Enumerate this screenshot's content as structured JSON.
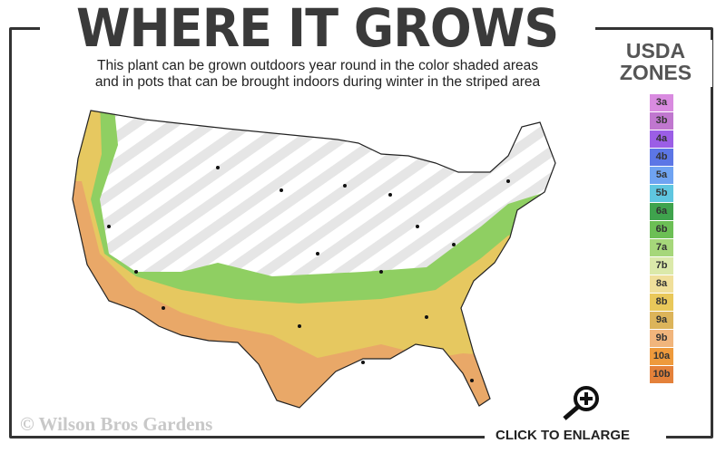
{
  "header": {
    "title": "WHERE IT GROWS",
    "subtitle_line1": "This plant can be grown outdoors year round in the color shaded areas",
    "subtitle_line2": "and in pots that can be brought indoors during winter in the striped area"
  },
  "legend": {
    "title_line1": "USDA",
    "title_line2": "ZONES",
    "zones": [
      {
        "label": "3a",
        "color": "#d98be0"
      },
      {
        "label": "3b",
        "color": "#c077cf"
      },
      {
        "label": "4a",
        "color": "#9b5ee6"
      },
      {
        "label": "4b",
        "color": "#5c76e6"
      },
      {
        "label": "5a",
        "color": "#6fa3f2"
      },
      {
        "label": "5b",
        "color": "#5fc6e0"
      },
      {
        "label": "6a",
        "color": "#3fa34d"
      },
      {
        "label": "6b",
        "color": "#6cbf55"
      },
      {
        "label": "7a",
        "color": "#a6d77a"
      },
      {
        "label": "7b",
        "color": "#dbe9aa"
      },
      {
        "label": "8a",
        "color": "#f0df9a"
      },
      {
        "label": "8b",
        "color": "#e9c85a"
      },
      {
        "label": "9a",
        "color": "#dcb45a"
      },
      {
        "label": "9b",
        "color": "#f1b57c"
      },
      {
        "label": "10a",
        "color": "#ee9a3c"
      },
      {
        "label": "10b",
        "color": "#e4813a"
      }
    ]
  },
  "footer": {
    "copyright": "© Wilson Bros Gardens",
    "enlarge_label": "CLICK TO ENLARGE"
  },
  "icons": {
    "enlarge": "magnifier-plus-icon"
  }
}
